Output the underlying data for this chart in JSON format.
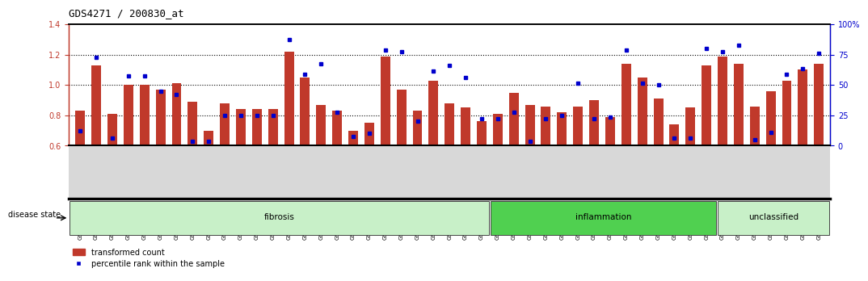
{
  "title": "GDS4271 / 200830_at",
  "samples": [
    "GSM380382",
    "GSM380383",
    "GSM380384",
    "GSM380385",
    "GSM380386",
    "GSM380387",
    "GSM380388",
    "GSM380389",
    "GSM380390",
    "GSM380391",
    "GSM380392",
    "GSM380393",
    "GSM380394",
    "GSM380395",
    "GSM380396",
    "GSM380397",
    "GSM380398",
    "GSM380399",
    "GSM380400",
    "GSM380401",
    "GSM380402",
    "GSM380403",
    "GSM380404",
    "GSM380405",
    "GSM380406",
    "GSM380407",
    "GSM380408",
    "GSM380409",
    "GSM380410",
    "GSM380411",
    "GSM380412",
    "GSM380413",
    "GSM380414",
    "GSM380415",
    "GSM380416",
    "GSM380417",
    "GSM380418",
    "GSM380419",
    "GSM380420",
    "GSM380421",
    "GSM380422",
    "GSM380423",
    "GSM380424",
    "GSM380425",
    "GSM380426",
    "GSM380427",
    "GSM380428"
  ],
  "transformed_count": [
    0.83,
    1.13,
    0.81,
    1.0,
    1.0,
    0.97,
    1.01,
    0.89,
    0.7,
    0.88,
    0.84,
    0.84,
    0.84,
    1.22,
    1.05,
    0.87,
    0.83,
    0.7,
    0.75,
    1.19,
    0.97,
    0.83,
    1.03,
    0.88,
    0.85,
    0.76,
    0.81,
    0.95,
    0.87,
    0.86,
    0.82,
    0.86,
    0.9,
    0.79,
    1.14,
    1.05,
    0.91,
    0.74,
    0.85,
    1.13,
    1.19,
    1.14,
    0.86,
    0.96,
    1.03,
    1.1,
    1.14
  ],
  "percentile_rank": [
    0.7,
    1.18,
    0.65,
    1.06,
    1.06,
    0.96,
    0.94,
    0.63,
    0.63,
    0.8,
    0.8,
    0.8,
    0.8,
    1.3,
    1.07,
    1.14,
    0.82,
    0.66,
    0.68,
    1.23,
    1.22,
    0.76,
    1.09,
    1.13,
    1.05,
    0.78,
    0.78,
    0.82,
    0.63,
    0.78,
    0.8,
    1.01,
    0.78,
    0.79,
    1.23,
    1.01,
    1.0,
    0.65,
    0.65,
    1.24,
    1.22,
    1.26,
    0.64,
    0.69,
    1.07,
    1.11,
    1.21
  ],
  "groups": [
    {
      "label": "fibrosis",
      "start": 0,
      "end": 26,
      "color": "#c8f0c8"
    },
    {
      "label": "inflammation",
      "start": 26,
      "end": 40,
      "color": "#50d050"
    },
    {
      "label": "unclassified",
      "start": 40,
      "end": 47,
      "color": "#c8f0c8"
    }
  ],
  "ylim": [
    0.6,
    1.4
  ],
  "y_ticks_left": [
    0.6,
    0.8,
    1.0,
    1.2,
    1.4
  ],
  "y_ticks_right_pct": [
    0,
    25,
    50,
    75,
    100
  ],
  "bar_color": "#C0392B",
  "dot_color": "#0000CC",
  "dotted_lines": [
    0.8,
    1.0,
    1.2
  ],
  "bar_width": 0.6,
  "disease_state_label": "disease state"
}
